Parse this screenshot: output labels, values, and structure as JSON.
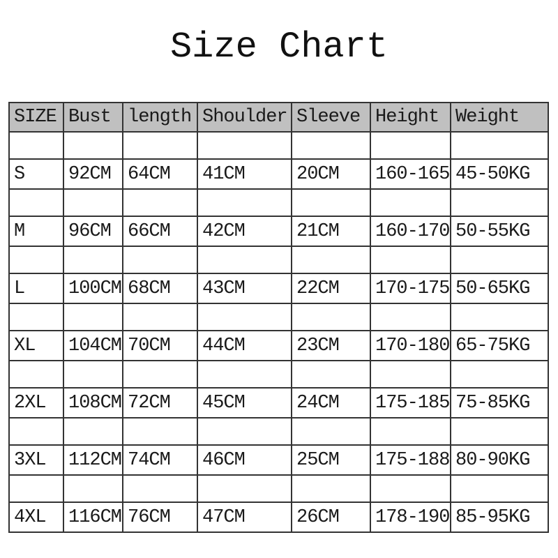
{
  "page_title": "Size Chart",
  "colors": {
    "header_background": "#c0c0c0",
    "table_border": "#333333",
    "text": "#1a1a1a",
    "page_background": "#ffffff"
  },
  "chart_data": {
    "type": "table",
    "title": "Size Chart",
    "columns": [
      "SIZE",
      "Bust",
      "length",
      "Shoulder",
      "Sleeve",
      "Height",
      "Weight"
    ],
    "rows": [
      [
        "S",
        "92CM",
        "64CM",
        "41CM",
        "20CM",
        "160-165",
        "45-50KG"
      ],
      [
        "M",
        "96CM",
        "66CM",
        "42CM",
        "21CM",
        "160-170",
        "50-55KG"
      ],
      [
        "L",
        "100CM",
        "68CM",
        "43CM",
        "22CM",
        "170-175",
        "50-65KG"
      ],
      [
        "XL",
        "104CM",
        "70CM",
        "44CM",
        "23CM",
        "170-180",
        "65-75KG"
      ],
      [
        "2XL",
        "108CM",
        "72CM",
        "45CM",
        "24CM",
        "175-185",
        "75-85KG"
      ],
      [
        "3XL",
        "112CM",
        "74CM",
        "46CM",
        "25CM",
        "175-188",
        "80-90KG"
      ],
      [
        "4XL",
        "116CM",
        "76CM",
        "47CM",
        "26CM",
        "178-190",
        "85-95KG"
      ]
    ]
  }
}
